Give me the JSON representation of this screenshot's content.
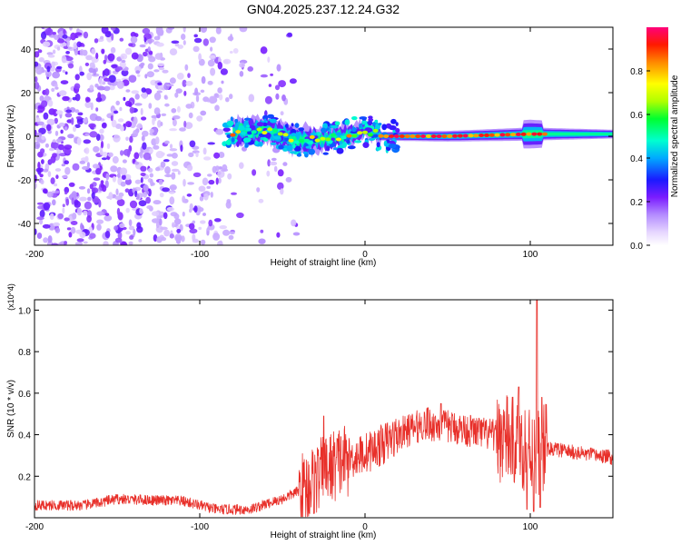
{
  "title": "GN04.2025.237.12.24.G32",
  "chart_data": [
    {
      "type": "heatmap",
      "xlabel": "Height of straight line (km)",
      "ylabel": "Frequency (Hz)",
      "xlim": [
        -200,
        150
      ],
      "ylim": [
        -50,
        50
      ],
      "x_ticks": [
        -200,
        -100,
        0,
        100
      ],
      "y_ticks": [
        -40,
        -20,
        0,
        20,
        40
      ],
      "x_tick_labels": [
        "-200",
        "-100",
        "0",
        "100"
      ],
      "y_tick_labels": [
        "-40",
        "-20",
        "0",
        "20",
        "40"
      ],
      "colorbar": {
        "label": "Normalized spectral amplitude",
        "range": [
          0,
          1
        ],
        "ticks": [
          0,
          0.2,
          0.4,
          0.6,
          0.8
        ],
        "tick_labels": [
          "0.0",
          "0.2",
          "0.4",
          "0.6",
          "0.8"
        ]
      },
      "signal_band": {
        "description": "narrow band near 0 Hz",
        "x_range": [
          -80,
          150
        ],
        "center_hz": [
          {
            "x": -80,
            "f": 2
          },
          {
            "x": -60,
            "f": 3
          },
          {
            "x": -40,
            "f": -2
          },
          {
            "x": -20,
            "f": -1
          },
          {
            "x": 0,
            "f": 3
          },
          {
            "x": 10,
            "f": 0
          },
          {
            "x": 50,
            "f": 0
          },
          {
            "x": 100,
            "f": 1
          },
          {
            "x": 150,
            "f": 1
          }
        ],
        "half_width_hz": [
          {
            "x": -80,
            "w": 5
          },
          {
            "x": -40,
            "w": 5
          },
          {
            "x": 0,
            "w": 3
          },
          {
            "x": 10,
            "w": 2
          },
          {
            "x": 100,
            "w": 3
          },
          {
            "x": 150,
            "w": 2
          }
        ]
      },
      "noise_region": {
        "x_range": [
          -200,
          -40
        ],
        "amplitude": 0.25
      }
    },
    {
      "type": "line",
      "xlabel": "Height of straight line (km)",
      "ylabel": "SNR (10 * v/v)",
      "y_scale_label": "(x10^4)",
      "xlim": [
        -200,
        150
      ],
      "ylim": [
        0,
        1.05
      ],
      "x_ticks": [
        -200,
        -100,
        0,
        100
      ],
      "y_ticks": [
        0.2,
        0.4,
        0.6,
        0.8,
        1.0
      ],
      "x_tick_labels": [
        "-200",
        "-100",
        "0",
        "100"
      ],
      "y_tick_labels": [
        "0.2",
        "0.4",
        "0.6",
        "0.8",
        "1.0"
      ],
      "series": [
        {
          "name": "SNR",
          "color": "#e8302a",
          "envelope": [
            {
              "x": -200,
              "y": 0.06
            },
            {
              "x": -170,
              "y": 0.06
            },
            {
              "x": -150,
              "y": 0.09
            },
            {
              "x": -110,
              "y": 0.08
            },
            {
              "x": -90,
              "y": 0.04
            },
            {
              "x": -70,
              "y": 0.04
            },
            {
              "x": -50,
              "y": 0.09
            },
            {
              "x": -35,
              "y": 0.15
            },
            {
              "x": -25,
              "y": 0.22
            },
            {
              "x": -15,
              "y": 0.27
            },
            {
              "x": 0,
              "y": 0.31
            },
            {
              "x": 10,
              "y": 0.35
            },
            {
              "x": 20,
              "y": 0.4
            },
            {
              "x": 35,
              "y": 0.45
            },
            {
              "x": 50,
              "y": 0.44
            },
            {
              "x": 70,
              "y": 0.41
            },
            {
              "x": 85,
              "y": 0.38
            },
            {
              "x": 95,
              "y": 0.35
            },
            {
              "x": 105,
              "y": 0.33
            },
            {
              "x": 115,
              "y": 0.33
            },
            {
              "x": 130,
              "y": 0.31
            },
            {
              "x": 150,
              "y": 0.29
            }
          ],
          "peaks": [
            {
              "x": -25,
              "y": 0.49
            },
            {
              "x": 38,
              "y": 0.53
            },
            {
              "x": 46,
              "y": 0.55
            },
            {
              "x": 93,
              "y": 0.63
            },
            {
              "x": 98,
              "y": 0.66
            },
            {
              "x": 104,
              "y": 1.05
            },
            {
              "x": 107,
              "y": 0.58
            }
          ],
          "dips": [
            {
              "x": 98,
              "y": 0.04
            },
            {
              "x": 102,
              "y": 0.03
            },
            {
              "x": 106,
              "y": 0.05
            }
          ]
        }
      ]
    }
  ]
}
